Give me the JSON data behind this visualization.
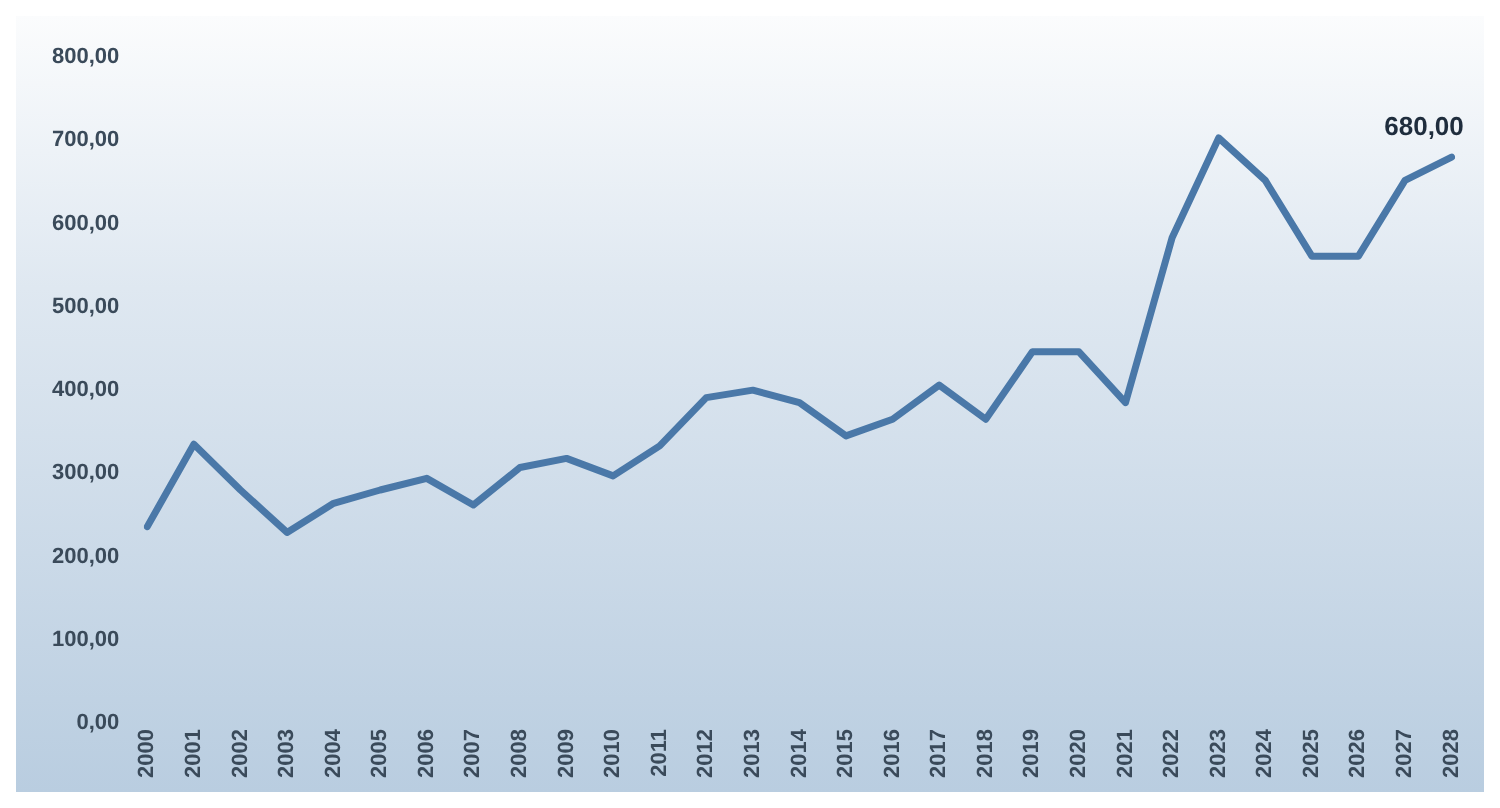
{
  "chart_data": {
    "type": "line",
    "categories": [
      "2000",
      "2001",
      "2002",
      "2003",
      "2004",
      "2005",
      "2006",
      "2007",
      "2008",
      "2009",
      "2010",
      "2011",
      "2012",
      "2013",
      "2014",
      "2015",
      "2016",
      "2017",
      "2018",
      "2019",
      "2020",
      "2021",
      "2022",
      "2023",
      "2024",
      "2025",
      "2026",
      "2027",
      "2028"
    ],
    "series": [
      {
        "color": "#4a78a8",
        "values": [
          236,
          335,
          280,
          229,
          264,
          280,
          294,
          262,
          307,
          318,
          297,
          333,
          391,
          400,
          385,
          345,
          365,
          406,
          365,
          446,
          446,
          385,
          583,
          703,
          652,
          561,
          561,
          652,
          680
        ],
        "value_labels": [
          null,
          null,
          null,
          null,
          null,
          null,
          null,
          null,
          null,
          null,
          null,
          null,
          null,
          null,
          null,
          null,
          null,
          null,
          null,
          null,
          null,
          null,
          null,
          null,
          null,
          null,
          null,
          null,
          "680,00"
        ]
      }
    ],
    "ylim": [
      0,
      800
    ],
    "yticks": [
      {
        "value": 0,
        "label": "0,00"
      },
      {
        "value": 100,
        "label": "100,00"
      },
      {
        "value": 200,
        "label": "200,00"
      },
      {
        "value": 300,
        "label": "300,00"
      },
      {
        "value": 400,
        "label": "400,00"
      },
      {
        "value": 500,
        "label": "500,00"
      },
      {
        "value": 600,
        "label": "600,00"
      },
      {
        "value": 700,
        "label": "700,00"
      },
      {
        "value": 800,
        "label": "800,00"
      }
    ],
    "grid": false,
    "legend": false,
    "marker": "none",
    "line_style": "solid"
  }
}
